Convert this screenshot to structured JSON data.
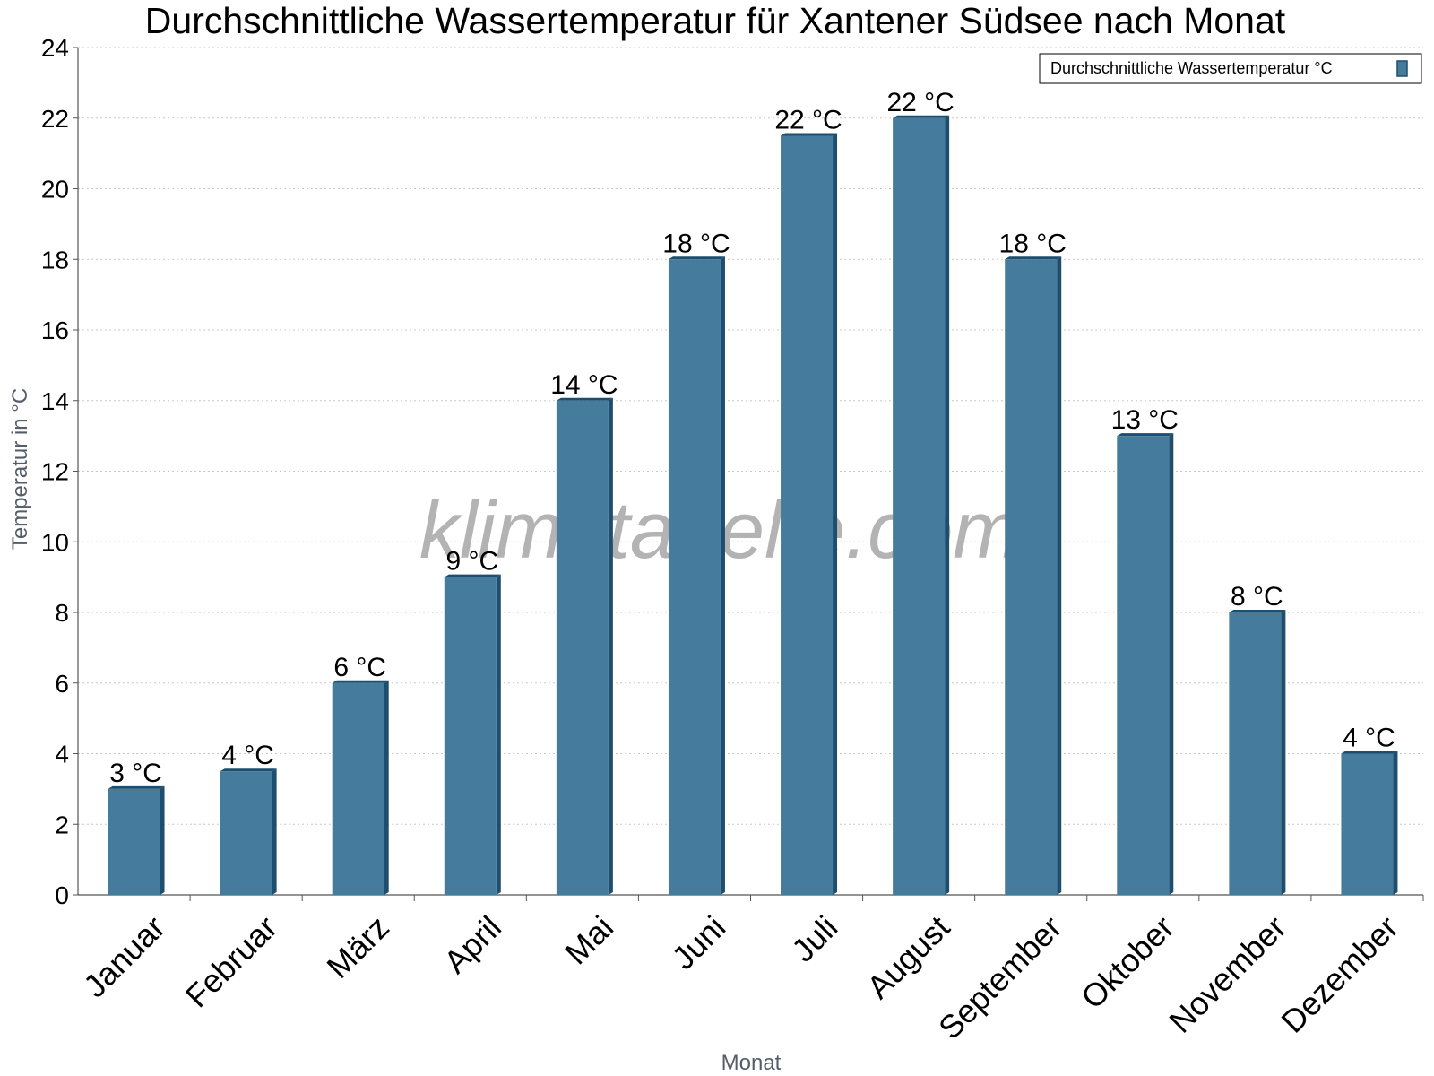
{
  "chart_data": {
    "type": "bar",
    "title": "Durchschnittliche Wassertemperatur für Xantener Südsee nach Monat",
    "xlabel": "Monat",
    "ylabel": "Temperatur in °C",
    "ylim": [
      0,
      24
    ],
    "yticks": [
      "0",
      "2",
      "4",
      "6",
      "8",
      "10",
      "12",
      "14",
      "16",
      "18",
      "20",
      "22",
      "24"
    ],
    "grid": true,
    "legend_position": "top-right",
    "categories": [
      "Januar",
      "Februar",
      "März",
      "April",
      "Mai",
      "Juni",
      "Juli",
      "August",
      "September",
      "Oktober",
      "November",
      "Dezember"
    ],
    "series": [
      {
        "name": "Durchschnittliche Wassertemperatur °C",
        "values": [
          3.0,
          3.5,
          6.0,
          9.0,
          14.0,
          18.0,
          21.5,
          22.0,
          18.0,
          13.0,
          8.0,
          4.0
        ],
        "labels": [
          "3 °C",
          "4 °C",
          "6 °C",
          "9 °C",
          "14 °C",
          "18 °C",
          "22 °C",
          "22 °C",
          "18 °C",
          "13 °C",
          "8 °C",
          "4 °C"
        ],
        "color": "#457b9d",
        "edge_color": "#1d4e6e"
      }
    ]
  },
  "watermark": "klimatabelle.com"
}
